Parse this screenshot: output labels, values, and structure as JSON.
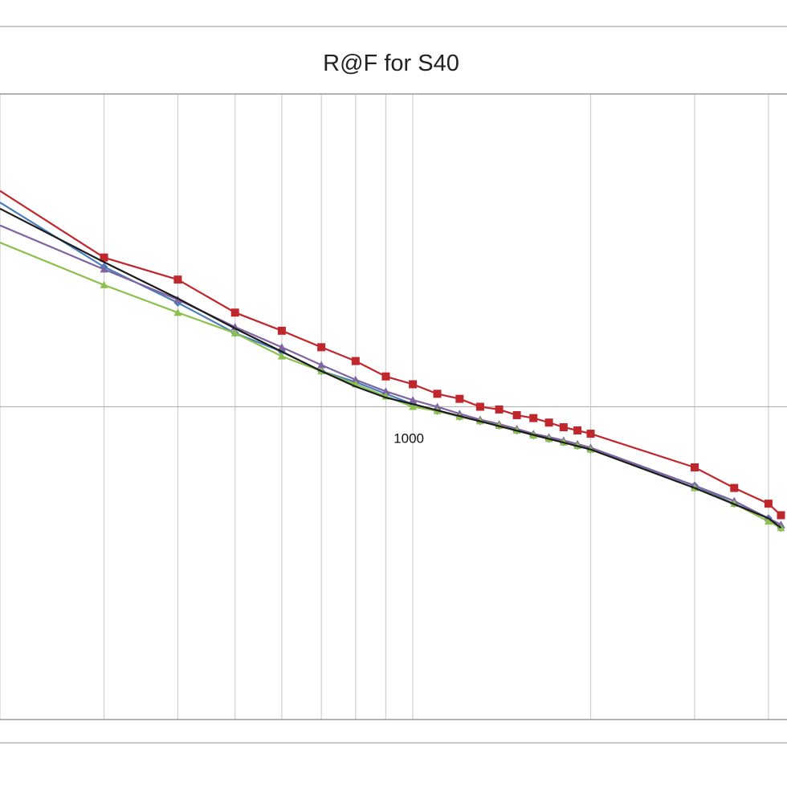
{
  "chart_data": {
    "type": "line",
    "title": "R@F  for S40",
    "x_scale": "log",
    "y_scale": "log",
    "xlim": [
      200,
      4300
    ],
    "ylim": [
      0.1,
      10
    ],
    "x_tick_labels": [
      {
        "value": 1000,
        "label": "1000"
      }
    ],
    "grid": true,
    "legend": "none",
    "series": [
      {
        "color": "#c0272d",
        "marker": "square",
        "points": [
          [
            200,
            4.9
          ],
          [
            300,
            3.0
          ],
          [
            400,
            2.55
          ],
          [
            500,
            2.0
          ],
          [
            600,
            1.75
          ],
          [
            700,
            1.55
          ],
          [
            800,
            1.4
          ],
          [
            900,
            1.25
          ],
          [
            1000,
            1.18
          ],
          [
            1100,
            1.1
          ],
          [
            1200,
            1.06
          ],
          [
            1300,
            1.0
          ],
          [
            1400,
            0.98
          ],
          [
            1500,
            0.94
          ],
          [
            1600,
            0.92
          ],
          [
            1700,
            0.89
          ],
          [
            1800,
            0.86
          ],
          [
            1900,
            0.84
          ],
          [
            2000,
            0.82
          ],
          [
            3000,
            0.64
          ],
          [
            3500,
            0.55
          ],
          [
            4000,
            0.49
          ],
          [
            4200,
            0.45
          ]
        ]
      },
      {
        "color": "#4a7ebb",
        "marker": "diamond",
        "points": [
          [
            200,
            4.5
          ],
          [
            300,
            2.8
          ],
          [
            400,
            2.15
          ],
          [
            500,
            1.72
          ],
          [
            600,
            1.5
          ],
          [
            700,
            1.3
          ],
          [
            800,
            1.2
          ],
          [
            900,
            1.1
          ],
          [
            1000,
            1.02
          ],
          [
            1100,
            0.97
          ],
          [
            1200,
            0.93
          ],
          [
            1300,
            0.9
          ],
          [
            1400,
            0.87
          ],
          [
            1500,
            0.84
          ],
          [
            1600,
            0.81
          ],
          [
            1700,
            0.79
          ],
          [
            1800,
            0.77
          ],
          [
            1900,
            0.75
          ],
          [
            2000,
            0.73
          ],
          [
            3000,
            0.56
          ],
          [
            3500,
            0.49
          ],
          [
            4000,
            0.44
          ],
          [
            4200,
            0.41
          ]
        ]
      },
      {
        "color": "#7f64a2",
        "marker": "triangle",
        "points": [
          [
            200,
            3.8
          ],
          [
            300,
            2.75
          ],
          [
            400,
            2.2
          ],
          [
            500,
            1.8
          ],
          [
            600,
            1.55
          ],
          [
            700,
            1.36
          ],
          [
            800,
            1.22
          ],
          [
            900,
            1.12
          ],
          [
            1000,
            1.05
          ],
          [
            1100,
            1.0
          ],
          [
            1200,
            0.95
          ],
          [
            1300,
            0.91
          ],
          [
            1400,
            0.88
          ],
          [
            1500,
            0.85
          ],
          [
            1600,
            0.82
          ],
          [
            1700,
            0.8
          ],
          [
            1800,
            0.78
          ],
          [
            1900,
            0.76
          ],
          [
            2000,
            0.74
          ],
          [
            3000,
            0.56
          ],
          [
            3500,
            0.5
          ],
          [
            4000,
            0.44
          ],
          [
            4200,
            0.42
          ]
        ]
      },
      {
        "color": "#8cc04d",
        "marker": "triangle",
        "points": [
          [
            200,
            3.35
          ],
          [
            300,
            2.45
          ],
          [
            400,
            2.0
          ],
          [
            500,
            1.72
          ],
          [
            600,
            1.45
          ],
          [
            700,
            1.3
          ],
          [
            800,
            1.18
          ],
          [
            900,
            1.08
          ],
          [
            1000,
            1.0
          ],
          [
            1100,
            0.97
          ],
          [
            1200,
            0.93
          ],
          [
            1300,
            0.9
          ],
          [
            1400,
            0.87
          ],
          [
            1500,
            0.84
          ],
          [
            1600,
            0.81
          ],
          [
            1700,
            0.79
          ],
          [
            1800,
            0.77
          ],
          [
            1900,
            0.75
          ],
          [
            2000,
            0.73
          ],
          [
            3000,
            0.55
          ],
          [
            3500,
            0.49
          ],
          [
            4000,
            0.43
          ],
          [
            4200,
            0.41
          ]
        ]
      },
      {
        "color": "#1c1c1c",
        "marker": "none",
        "points": [
          [
            200,
            4.3
          ],
          [
            300,
            2.9
          ],
          [
            400,
            2.22
          ],
          [
            500,
            1.78
          ],
          [
            600,
            1.5
          ],
          [
            700,
            1.3
          ],
          [
            800,
            1.16
          ],
          [
            900,
            1.07
          ],
          [
            1000,
            1.02
          ],
          [
            2000,
            0.73
          ],
          [
            3000,
            0.55
          ],
          [
            4000,
            0.44
          ],
          [
            4200,
            0.41
          ]
        ]
      }
    ]
  }
}
